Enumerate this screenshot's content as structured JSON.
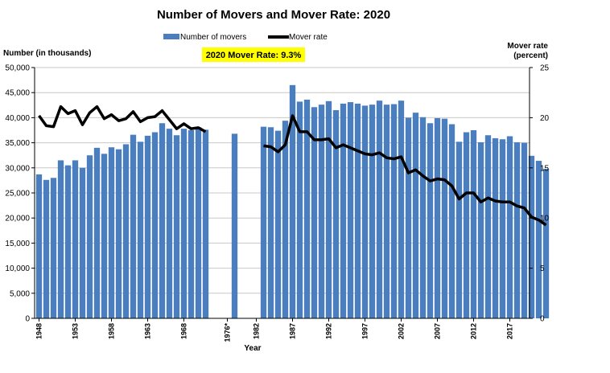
{
  "chart_data": {
    "type": "bar",
    "title": "Number of Movers and Mover Rate:  2020",
    "annotation": "2020 Mover Rate: 9.3%",
    "xlabel": "Year",
    "ylabel_left": "Number (in thousands)",
    "ylabel_right_line1": "Mover rate",
    "ylabel_right_line2": "(percent)",
    "left_axis": {
      "min": 0,
      "max": 50000,
      "step": 5000,
      "ticks": [
        "0",
        "5,000",
        "10,000",
        "15,000",
        "20,000",
        "25,000",
        "30,000",
        "35,000",
        "40,000",
        "45,000",
        "50,000"
      ]
    },
    "right_axis": {
      "min": 0,
      "max": 25,
      "step": 5,
      "ticks": [
        "0",
        "5",
        "10",
        "15",
        "20",
        "25"
      ]
    },
    "x_tick_labels": [
      {
        "slot": 0,
        "label": "1948"
      },
      {
        "slot": 5,
        "label": "1953"
      },
      {
        "slot": 10,
        "label": "1958"
      },
      {
        "slot": 15,
        "label": "1963"
      },
      {
        "slot": 20,
        "label": "1968"
      },
      {
        "slot": 26,
        "label": "1976*"
      },
      {
        "slot": 30,
        "label": "1982"
      },
      {
        "slot": 35,
        "label": "1987"
      },
      {
        "slot": 40,
        "label": "1992"
      },
      {
        "slot": 45,
        "label": "1997"
      },
      {
        "slot": 50,
        "label": "2002"
      },
      {
        "slot": 55,
        "label": "2007"
      },
      {
        "slot": 60,
        "label": "2012"
      },
      {
        "slot": 65,
        "label": "2017"
      }
    ],
    "legend": {
      "position": "top-center",
      "bars_label": "Number of movers",
      "line_label": "Mover rate"
    },
    "colors": {
      "bars": "#4a7ebf",
      "line": "#000000",
      "annotation_bg": "#ffff00",
      "grid": "#c8c8c8"
    },
    "grid": true,
    "segments": [
      {
        "bars": [
          28700,
          27600,
          28000,
          31500,
          30500,
          31500,
          30000,
          32500,
          34000,
          32800,
          34100,
          33700,
          34700,
          36600,
          35200,
          36400,
          37100,
          38900,
          37800,
          36500,
          37800,
          37500,
          38100,
          37600
        ],
        "rate": [
          20.2,
          19.2,
          19.1,
          21.1,
          20.4,
          20.7,
          19.3,
          20.5,
          21.1,
          19.9,
          20.3,
          19.7,
          19.9,
          20.6,
          19.6,
          20.0,
          20.1,
          20.7,
          19.8,
          18.9,
          19.4,
          18.9,
          19.0,
          18.6
        ]
      },
      {
        "bars": [
          36800
        ],
        "rate": []
      },
      {
        "bars": [
          38200,
          38100,
          37400,
          39400,
          46500,
          43200,
          43600,
          42100,
          42600,
          43300,
          41500,
          42800,
          43100,
          42800,
          42400,
          42600,
          43400,
          42600,
          42700,
          43400,
          40000,
          41000,
          40100,
          38900,
          39900,
          39800,
          38700,
          35200,
          37100,
          37500,
          35100,
          36500,
          35900,
          35700,
          36300,
          35100,
          35000,
          32400,
          31400,
          29800
        ],
        "rate": [
          17.2,
          17.1,
          16.6,
          17.3,
          20.2,
          18.6,
          18.6,
          17.8,
          17.8,
          17.9,
          17.0,
          17.3,
          17.0,
          16.7,
          16.4,
          16.3,
          16.5,
          16.0,
          15.9,
          16.1,
          14.5,
          14.8,
          14.2,
          13.7,
          13.9,
          13.8,
          13.2,
          11.9,
          12.5,
          12.5,
          11.6,
          12.0,
          11.7,
          11.6,
          11.6,
          11.2,
          11.0,
          10.1,
          9.8,
          9.3
        ]
      }
    ]
  }
}
